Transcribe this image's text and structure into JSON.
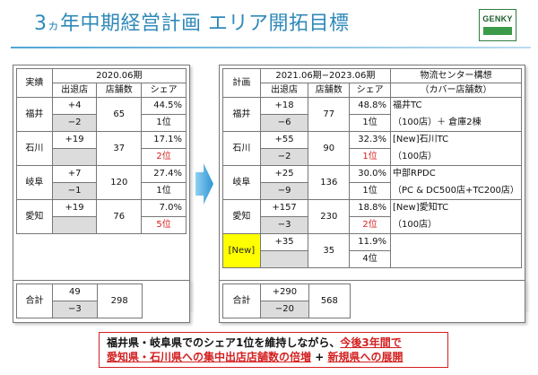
{
  "header": {
    "title_prefix": "3",
    "title_ka": "ヵ",
    "title_rest": "年中期経営計画 エリア開拓目標",
    "logo_text": "GENKY"
  },
  "left_table": {
    "row_header_label": "実績",
    "period": "2020.06期",
    "col_headers": [
      "出退店",
      "店舗数",
      "シェア"
    ],
    "rows": [
      {
        "label": "福井",
        "open": "+4",
        "close": "−2",
        "stores": "65",
        "share": "44.5%",
        "rank": "1位"
      },
      {
        "label": "石川",
        "open": "+19",
        "close": "",
        "stores": "37",
        "share": "17.1%",
        "rank": "2位"
      },
      {
        "label": "岐阜",
        "open": "+7",
        "close": "−1",
        "stores": "120",
        "share": "27.4%",
        "rank": "1位"
      },
      {
        "label": "愛知",
        "open": "+19",
        "close": "",
        "stores": "76",
        "share": "7.0%",
        "rank": "5位"
      }
    ],
    "total": {
      "label": "合計",
      "open": "49",
      "close": "−3",
      "stores": "298"
    }
  },
  "right_table": {
    "row_header_label": "計画",
    "period": "2021.06期−2023.06期",
    "logistics_header": "物流センター構想",
    "logistics_subheader": "（カバー店舗数）",
    "col_headers": [
      "出退店",
      "店舗数",
      "シェア"
    ],
    "rows": [
      {
        "label": "福井",
        "open": "+18",
        "close": "−6",
        "stores": "77",
        "share": "48.8%",
        "rank": "1位",
        "logistics_1": "福井TC",
        "logistics_2": "（100店）＋ 倉庫2棟"
      },
      {
        "label": "石川",
        "open": "+55",
        "close": "−2",
        "stores": "90",
        "share": "32.3%",
        "rank": "1位",
        "logistics_1": "[New]石川TC",
        "logistics_2": "（100店）"
      },
      {
        "label": "岐阜",
        "open": "+25",
        "close": "−9",
        "stores": "136",
        "share": "30.0%",
        "rank": "1位",
        "logistics_1": "中部RPDC",
        "logistics_2": "（PC & DC500店+TC200店）"
      },
      {
        "label": "愛知",
        "open": "+157",
        "close": "−3",
        "stores": "230",
        "share": "18.8%",
        "rank": "2位",
        "logistics_1": "[New]愛知TC",
        "logistics_2": "（100店）"
      },
      {
        "label": "[New]",
        "open": "+35",
        "close": "",
        "stores": "35",
        "share": "11.9%",
        "rank": "4位",
        "logistics_1": "",
        "logistics_2": ""
      }
    ],
    "total": {
      "label": "合計",
      "open": "+290",
      "close": "−20",
      "stores": "568"
    }
  },
  "footer": {
    "line1_black": "福井県・岐阜県でのシェア1位を維持しながら、",
    "line1_red": "今後3年間で",
    "line2_red_a": "愛知県・石川県への集中出店店舗数の倍増",
    "line2_plus": " + ",
    "line2_red_b": "新規県への展開"
  },
  "colors": {
    "title": "#2f89b9",
    "accent_red": "#d42020",
    "highlight_yellow": "#ffff00",
    "arrow": "#3aa3dd"
  }
}
